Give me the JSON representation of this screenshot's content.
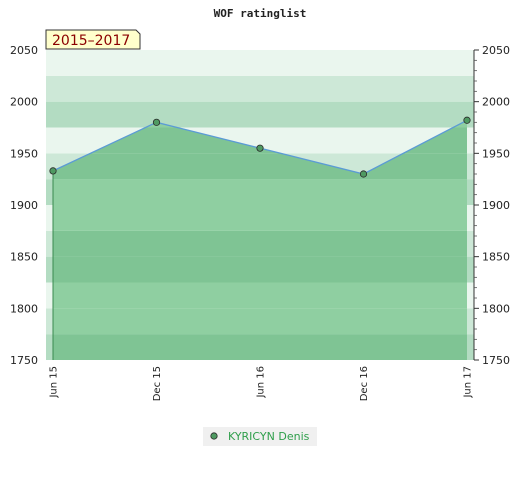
{
  "chart_data": {
    "type": "area",
    "title": "WOF ratinglist",
    "period_label": "2015–2017",
    "x": [
      "Jun 15",
      "Dec 15",
      "Jun 16",
      "Dec 16",
      "Jun 17"
    ],
    "series": [
      {
        "name": "KYRICYN Denis",
        "values": [
          1933,
          1980,
          1955,
          1930,
          1982
        ]
      }
    ],
    "ylim": [
      1750,
      2050
    ],
    "yticks": [
      1750,
      1800,
      1850,
      1900,
      1950,
      2000,
      2050
    ],
    "xlabel": "",
    "ylabel": "",
    "legend_position": "bottom-center",
    "grid": true,
    "colors": {
      "band_dark": "#7fc494",
      "band_light": "#8fcfa1",
      "area_fill": "#9bd3ab",
      "line": "#5b9bd5",
      "point": "#4f9a62",
      "above_band_a": "#b3dcc2",
      "above_band_b": "#cde8d7",
      "above_band_c": "#eaf6ee",
      "period_bg": "#ffffcc"
    }
  }
}
